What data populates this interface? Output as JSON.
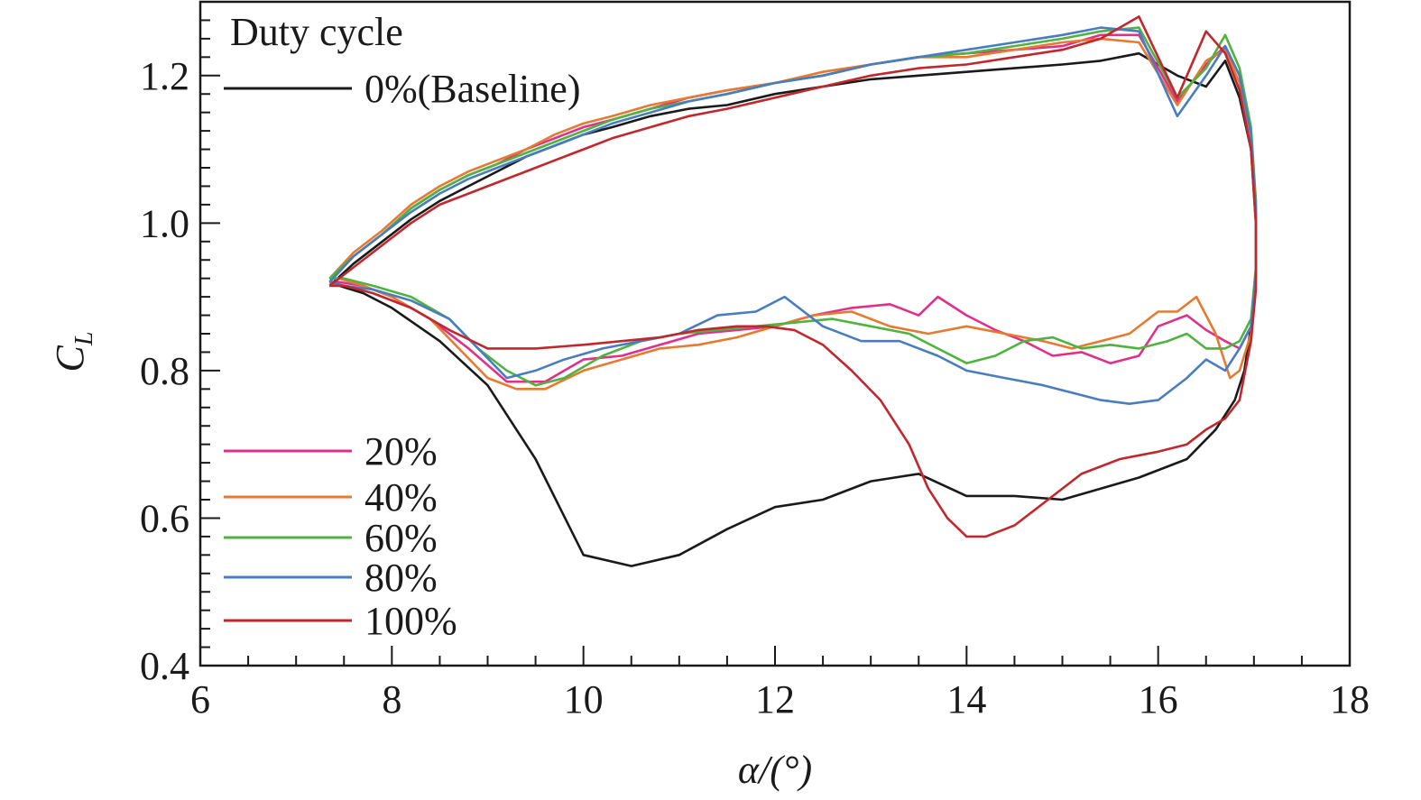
{
  "chart_data": {
    "type": "line",
    "xlabel": "α/(°)",
    "ylabel": "C",
    "ylabel_sub": "L",
    "xlim": [
      6,
      18
    ],
    "ylim": [
      0.4,
      1.3
    ],
    "xticks": [
      6,
      8,
      10,
      12,
      14,
      16,
      18
    ],
    "yticks": [
      0.4,
      0.6,
      0.8,
      1.0,
      1.2
    ],
    "xtick_labels": [
      "6",
      "8",
      "10",
      "12",
      "14",
      "16",
      "18"
    ],
    "ytick_labels": [
      "0.4",
      "0.6",
      "0.8",
      "1.0",
      "1.2"
    ],
    "legend": {
      "title": "Duty cycle",
      "placement": "left"
    },
    "series": [
      {
        "name": "0%(Baseline)",
        "color": "#1a1a1a",
        "x": [
          7.35,
          7.6,
          7.9,
          8.2,
          8.5,
          8.8,
          9.1,
          9.4,
          9.7,
          10.0,
          10.3,
          10.7,
          11.1,
          11.5,
          12.0,
          12.5,
          13.0,
          13.5,
          14.0,
          14.5,
          15.0,
          15.4,
          15.8,
          16.2,
          16.5,
          16.7,
          16.85,
          16.97,
          17.02,
          17.02,
          16.97,
          16.9,
          16.8,
          16.6,
          16.3,
          15.8,
          15.4,
          15.0,
          14.5,
          14.0,
          13.5,
          13.0,
          12.5,
          12.0,
          11.5,
          11.0,
          10.5,
          10.0,
          9.5,
          9.0,
          8.5,
          8.0,
          7.7,
          7.45,
          7.35
        ],
        "y": [
          0.915,
          0.945,
          0.975,
          1.005,
          1.03,
          1.05,
          1.07,
          1.09,
          1.105,
          1.12,
          1.13,
          1.145,
          1.155,
          1.16,
          1.175,
          1.185,
          1.195,
          1.2,
          1.205,
          1.21,
          1.215,
          1.22,
          1.23,
          1.2,
          1.185,
          1.22,
          1.17,
          1.1,
          1.0,
          0.93,
          0.86,
          0.8,
          0.76,
          0.72,
          0.68,
          0.655,
          0.64,
          0.625,
          0.63,
          0.63,
          0.66,
          0.65,
          0.625,
          0.615,
          0.585,
          0.55,
          0.535,
          0.55,
          0.68,
          0.78,
          0.84,
          0.885,
          0.905,
          0.915,
          0.915
        ]
      },
      {
        "name": "20%",
        "color": "#e0308a",
        "x": [
          7.35,
          7.6,
          7.9,
          8.2,
          8.5,
          8.8,
          9.1,
          9.4,
          9.7,
          10.0,
          10.3,
          10.7,
          11.1,
          11.5,
          12.0,
          12.5,
          13.0,
          13.5,
          14.0,
          14.5,
          15.0,
          15.4,
          15.8,
          16.2,
          16.5,
          16.7,
          16.85,
          16.97,
          17.02,
          17.02,
          16.97,
          16.85,
          16.7,
          16.5,
          16.3,
          16.0,
          15.8,
          15.5,
          15.2,
          14.9,
          14.6,
          14.3,
          14.0,
          13.7,
          13.5,
          13.2,
          12.8,
          12.4,
          12.0,
          11.6,
          11.2,
          10.8,
          10.4,
          10.0,
          9.6,
          9.2,
          8.8,
          8.4,
          8.0,
          7.7,
          7.45,
          7.35
        ],
        "y": [
          0.92,
          0.955,
          0.985,
          1.02,
          1.045,
          1.065,
          1.08,
          1.1,
          1.115,
          1.13,
          1.14,
          1.155,
          1.17,
          1.18,
          1.19,
          1.2,
          1.215,
          1.225,
          1.23,
          1.235,
          1.24,
          1.255,
          1.255,
          1.165,
          1.215,
          1.24,
          1.2,
          1.12,
          1.02,
          0.93,
          0.86,
          0.83,
          0.84,
          0.855,
          0.875,
          0.86,
          0.82,
          0.81,
          0.825,
          0.82,
          0.84,
          0.855,
          0.875,
          0.9,
          0.875,
          0.89,
          0.885,
          0.875,
          0.86,
          0.855,
          0.85,
          0.835,
          0.82,
          0.815,
          0.785,
          0.785,
          0.83,
          0.87,
          0.9,
          0.915,
          0.92,
          0.92
        ]
      },
      {
        "name": "40%",
        "color": "#e57a30",
        "x": [
          7.35,
          7.6,
          7.9,
          8.2,
          8.5,
          8.8,
          9.1,
          9.4,
          9.7,
          10.0,
          10.3,
          10.7,
          11.1,
          11.5,
          12.0,
          12.5,
          13.0,
          13.5,
          14.0,
          14.5,
          15.0,
          15.4,
          15.8,
          16.2,
          16.5,
          16.7,
          16.85,
          16.97,
          17.02,
          17.02,
          16.97,
          16.85,
          16.75,
          16.6,
          16.4,
          16.2,
          16.0,
          15.7,
          15.4,
          15.1,
          14.8,
          14.4,
          14.0,
          13.6,
          13.2,
          12.8,
          12.4,
          12.0,
          11.6,
          11.2,
          10.8,
          10.4,
          10.0,
          9.6,
          9.3,
          9.0,
          8.7,
          8.4,
          8.0,
          7.7,
          7.45,
          7.35
        ],
        "y": [
          0.925,
          0.96,
          0.99,
          1.025,
          1.05,
          1.07,
          1.085,
          1.1,
          1.12,
          1.135,
          1.145,
          1.16,
          1.17,
          1.18,
          1.19,
          1.205,
          1.215,
          1.225,
          1.225,
          1.235,
          1.245,
          1.25,
          1.245,
          1.16,
          1.22,
          1.235,
          1.19,
          1.1,
          1.0,
          0.92,
          0.85,
          0.8,
          0.79,
          0.85,
          0.9,
          0.88,
          0.88,
          0.85,
          0.84,
          0.83,
          0.84,
          0.85,
          0.86,
          0.85,
          0.86,
          0.88,
          0.875,
          0.86,
          0.845,
          0.835,
          0.83,
          0.815,
          0.8,
          0.775,
          0.775,
          0.79,
          0.83,
          0.87,
          0.9,
          0.915,
          0.925,
          0.925
        ]
      },
      {
        "name": "60%",
        "color": "#4fb340",
        "x": [
          7.35,
          7.6,
          7.9,
          8.2,
          8.5,
          8.8,
          9.1,
          9.4,
          9.7,
          10.0,
          10.3,
          10.7,
          11.1,
          11.5,
          12.0,
          12.5,
          13.0,
          13.5,
          14.0,
          14.5,
          15.0,
          15.4,
          15.8,
          16.2,
          16.5,
          16.7,
          16.85,
          16.97,
          17.02,
          17.02,
          16.97,
          16.85,
          16.7,
          16.5,
          16.3,
          16.1,
          15.8,
          15.5,
          15.2,
          14.9,
          14.6,
          14.3,
          14.0,
          13.7,
          13.4,
          13.0,
          12.6,
          12.2,
          11.8,
          11.4,
          11.0,
          10.6,
          10.2,
          9.8,
          9.5,
          9.2,
          8.9,
          8.6,
          8.2,
          7.8,
          7.5,
          7.35
        ],
        "y": [
          0.925,
          0.955,
          0.985,
          1.02,
          1.045,
          1.065,
          1.08,
          1.095,
          1.11,
          1.125,
          1.14,
          1.155,
          1.165,
          1.175,
          1.19,
          1.2,
          1.215,
          1.225,
          1.23,
          1.24,
          1.25,
          1.26,
          1.265,
          1.17,
          1.21,
          1.255,
          1.21,
          1.13,
          1.03,
          0.94,
          0.87,
          0.84,
          0.83,
          0.83,
          0.85,
          0.84,
          0.83,
          0.835,
          0.83,
          0.845,
          0.84,
          0.82,
          0.81,
          0.83,
          0.85,
          0.86,
          0.87,
          0.865,
          0.86,
          0.855,
          0.85,
          0.84,
          0.82,
          0.79,
          0.78,
          0.8,
          0.83,
          0.87,
          0.9,
          0.915,
          0.925,
          0.925
        ]
      },
      {
        "name": "80%",
        "color": "#4a7dc0",
        "x": [
          7.35,
          7.6,
          7.9,
          8.2,
          8.5,
          8.8,
          9.1,
          9.4,
          9.7,
          10.0,
          10.3,
          10.7,
          11.1,
          11.5,
          12.0,
          12.5,
          13.0,
          13.5,
          14.0,
          14.5,
          15.0,
          15.4,
          15.8,
          16.2,
          16.5,
          16.7,
          16.85,
          16.97,
          17.02,
          17.02,
          16.97,
          16.85,
          16.7,
          16.5,
          16.3,
          16.0,
          15.7,
          15.4,
          15.1,
          14.8,
          14.4,
          14.0,
          13.7,
          13.3,
          12.9,
          12.5,
          12.1,
          11.8,
          11.4,
          11.0,
          10.6,
          10.2,
          9.8,
          9.5,
          9.2,
          8.9,
          8.6,
          8.2,
          7.8,
          7.5,
          7.35
        ],
        "y": [
          0.92,
          0.955,
          0.985,
          1.015,
          1.04,
          1.06,
          1.075,
          1.09,
          1.105,
          1.12,
          1.135,
          1.15,
          1.165,
          1.175,
          1.19,
          1.2,
          1.215,
          1.225,
          1.235,
          1.245,
          1.255,
          1.265,
          1.26,
          1.145,
          1.2,
          1.24,
          1.2,
          1.12,
          1.02,
          0.93,
          0.86,
          0.83,
          0.8,
          0.815,
          0.79,
          0.76,
          0.755,
          0.76,
          0.77,
          0.78,
          0.79,
          0.8,
          0.82,
          0.84,
          0.84,
          0.86,
          0.9,
          0.88,
          0.875,
          0.85,
          0.84,
          0.83,
          0.815,
          0.8,
          0.79,
          0.83,
          0.87,
          0.895,
          0.91,
          0.915,
          0.92
        ]
      },
      {
        "name": "100%",
        "color": "#c0282e",
        "x": [
          7.35,
          7.6,
          7.9,
          8.2,
          8.5,
          8.8,
          9.1,
          9.4,
          9.7,
          10.0,
          10.3,
          10.7,
          11.1,
          11.5,
          12.0,
          12.5,
          13.0,
          13.5,
          14.0,
          14.5,
          15.0,
          15.4,
          15.8,
          16.2,
          16.5,
          16.7,
          16.85,
          16.97,
          17.02,
          17.02,
          16.97,
          16.85,
          16.7,
          16.5,
          16.3,
          16.0,
          15.6,
          15.2,
          14.8,
          14.5,
          14.2,
          14.0,
          13.8,
          13.6,
          13.4,
          13.1,
          12.8,
          12.5,
          12.2,
          11.9,
          11.6,
          11.2,
          10.8,
          10.4,
          10.0,
          9.5,
          9.0,
          8.6,
          8.2,
          7.8,
          7.5,
          7.35
        ],
        "y": [
          0.915,
          0.94,
          0.97,
          1.0,
          1.025,
          1.04,
          1.055,
          1.07,
          1.085,
          1.1,
          1.115,
          1.13,
          1.145,
          1.155,
          1.17,
          1.185,
          1.2,
          1.21,
          1.215,
          1.225,
          1.235,
          1.25,
          1.28,
          1.17,
          1.26,
          1.23,
          1.18,
          1.1,
          1.0,
          0.91,
          0.84,
          0.76,
          0.735,
          0.72,
          0.7,
          0.69,
          0.68,
          0.66,
          0.62,
          0.59,
          0.575,
          0.575,
          0.6,
          0.64,
          0.7,
          0.76,
          0.8,
          0.835,
          0.855,
          0.86,
          0.86,
          0.855,
          0.845,
          0.84,
          0.835,
          0.83,
          0.83,
          0.855,
          0.885,
          0.905,
          0.915,
          0.915
        ]
      }
    ]
  }
}
